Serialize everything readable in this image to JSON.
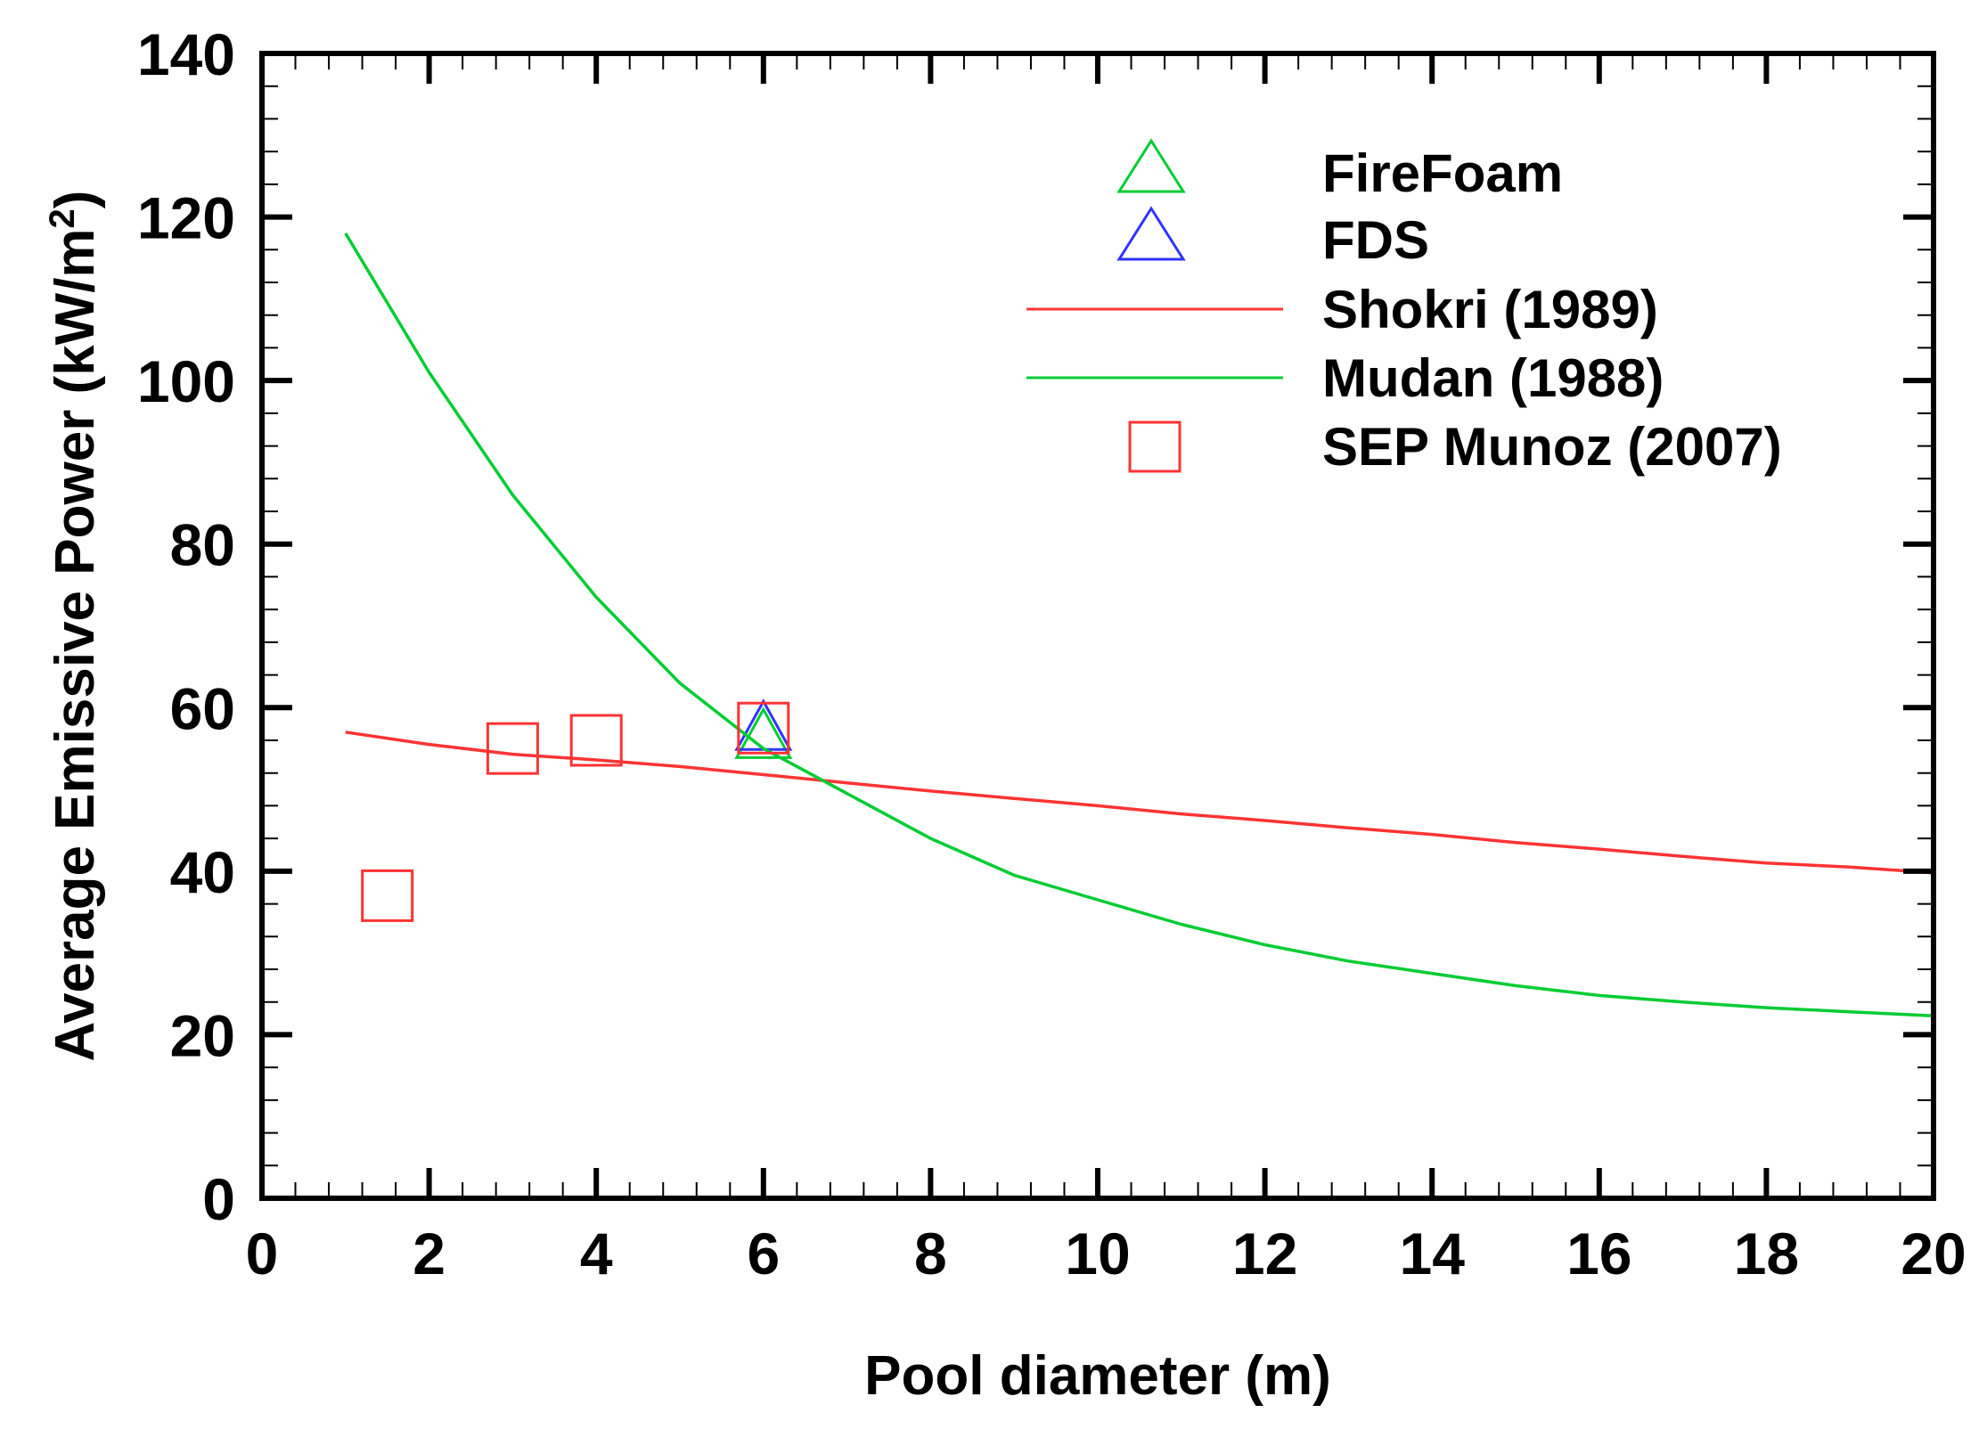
{
  "chart_data": {
    "type": "line",
    "xlabel": "Pool diameter (m)",
    "ylabel_main": "Average Emissive Power (kW/m",
    "ylabel_sup": "2",
    "ylabel_tail": ")",
    "xlim": [
      0,
      20
    ],
    "ylim": [
      0,
      140
    ],
    "x_major_ticks": [
      0,
      2,
      4,
      6,
      8,
      10,
      12,
      14,
      16,
      18,
      20
    ],
    "y_major_ticks": [
      0,
      20,
      40,
      60,
      80,
      100,
      120,
      140
    ],
    "x_minor_step": 0.4,
    "y_minor_step": 4,
    "grid": false,
    "legend_position": "top-right",
    "series": [
      {
        "name": "FireFoam",
        "kind": "marker",
        "marker": "triangle",
        "color": "#00cc33",
        "points": [
          [
            6.0,
            56.5
          ]
        ]
      },
      {
        "name": "FDS",
        "kind": "marker",
        "marker": "triangle",
        "color": "#3333ff",
        "points": [
          [
            6.0,
            57.5
          ]
        ]
      },
      {
        "name": "Shokri (1989)",
        "kind": "line",
        "color": "#ff3333",
        "points": [
          [
            1,
            57
          ],
          [
            2,
            55.5
          ],
          [
            3,
            54.3
          ],
          [
            4,
            53.6
          ],
          [
            5,
            52.8
          ],
          [
            6,
            51.8
          ],
          [
            7,
            50.8
          ],
          [
            8,
            49.8
          ],
          [
            9,
            48.9
          ],
          [
            10,
            48.0
          ],
          [
            11,
            47.0
          ],
          [
            12,
            46.2
          ],
          [
            13,
            45.3
          ],
          [
            14,
            44.5
          ],
          [
            15,
            43.5
          ],
          [
            16,
            42.7
          ],
          [
            17,
            41.8
          ],
          [
            18,
            41.0
          ],
          [
            19,
            40.5
          ],
          [
            20,
            39.8
          ]
        ]
      },
      {
        "name": "Mudan (1988)",
        "kind": "line",
        "color": "#00cc33",
        "points": [
          [
            1,
            118
          ],
          [
            2,
            101
          ],
          [
            3,
            86
          ],
          [
            4,
            73.5
          ],
          [
            5,
            63
          ],
          [
            6,
            55
          ],
          [
            7,
            49.5
          ],
          [
            8,
            44
          ],
          [
            9,
            39.5
          ],
          [
            10,
            36.5
          ],
          [
            11,
            33.5
          ],
          [
            12,
            31
          ],
          [
            13,
            29
          ],
          [
            14,
            27.5
          ],
          [
            15,
            26
          ],
          [
            16,
            24.8
          ],
          [
            17,
            24
          ],
          [
            18,
            23.3
          ],
          [
            19,
            22.8
          ],
          [
            20,
            22.3
          ]
        ]
      },
      {
        "name": "SEP Munoz (2007)",
        "kind": "marker",
        "marker": "square",
        "color": "#ff3333",
        "points": [
          [
            1.5,
            37
          ],
          [
            3.0,
            55
          ],
          [
            4.0,
            56
          ],
          [
            6.0,
            57.5
          ]
        ]
      }
    ]
  }
}
